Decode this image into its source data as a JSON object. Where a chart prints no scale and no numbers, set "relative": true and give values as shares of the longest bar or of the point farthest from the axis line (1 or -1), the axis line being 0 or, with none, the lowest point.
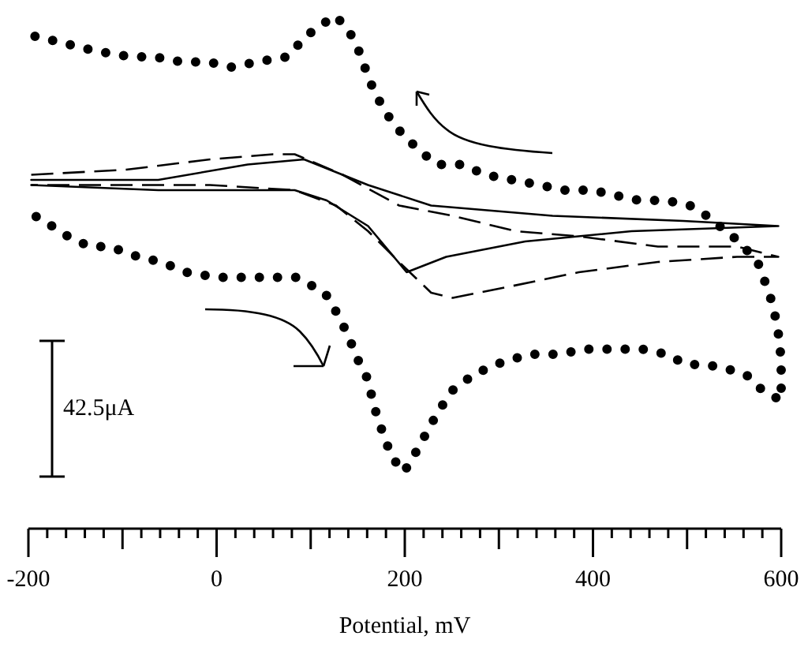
{
  "chart_data": {
    "type": "line",
    "relative": true,
    "xlabel": "Potential, mV",
    "annotations": [
      "42.5μA"
    ],
    "xlim": [
      -200,
      600
    ],
    "tick_labels": "x",
    "xticks": [
      -200,
      {
        "value": -180,
        "label": null
      },
      {
        "value": -160,
        "label": null
      },
      {
        "value": -140,
        "label": null
      },
      {
        "value": -120,
        "label": null
      },
      {
        "value": -100,
        "label": null
      },
      {
        "value": -80,
        "label": null
      },
      {
        "value": -60,
        "label": null
      },
      {
        "value": -40,
        "label": null
      },
      {
        "value": -20,
        "label": null
      },
      0,
      {
        "value": 20,
        "label": null
      },
      {
        "value": 40,
        "label": null
      },
      {
        "value": 60,
        "label": null
      },
      {
        "value": 80,
        "label": null
      },
      {
        "value": 100,
        "label": null
      },
      {
        "value": 120,
        "label": null
      },
      {
        "value": 140,
        "label": null
      },
      {
        "value": 160,
        "label": null
      },
      {
        "value": 180,
        "label": null
      },
      200,
      {
        "value": 220,
        "label": null
      },
      {
        "value": 240,
        "label": null
      },
      {
        "value": 260,
        "label": null
      },
      {
        "value": 280,
        "label": null
      },
      {
        "value": 300,
        "label": null
      },
      {
        "value": 320,
        "label": null
      },
      {
        "value": 340,
        "label": null
      },
      {
        "value": 360,
        "label": null
      },
      {
        "value": 380,
        "label": null
      },
      400,
      {
        "value": 420,
        "label": null
      },
      {
        "value": 440,
        "label": null
      },
      {
        "value": 460,
        "label": null
      },
      {
        "value": 480,
        "label": null
      },
      {
        "value": 500,
        "label": null
      },
      {
        "value": 520,
        "label": null
      },
      {
        "value": 540,
        "label": null
      },
      {
        "value": 560,
        "label": null
      },
      {
        "value": 580,
        "label": null
      },
      600
    ],
    "series": [
      {
        "color": "#000000",
        "line_style": "dotted",
        "x": [
          -193,
          -170,
          -148,
          -125,
          -91,
          -66,
          -37,
          -9,
          16,
          43,
          75,
          95,
          109,
          127,
          144,
          154,
          161,
          171,
          184,
          197,
          214,
          234,
          260,
          286,
          315,
          343,
          370,
          399,
          424,
          449,
          478,
          503,
          521,
          555,
          575,
          587,
          592,
          597,
          600,
          600,
          600,
          580,
          563,
          545,
          521,
          499,
          479,
          452,
          420,
          394,
          362,
          332,
          296,
          273,
          251,
          236,
          224,
          209,
          199,
          186,
          176,
          167,
          161,
          150,
          139,
          125,
          115,
          85,
          60,
          33,
          0,
          -32,
          -59,
          -83,
          -114,
          -135,
          -158,
          -175,
          -193,
          -200
        ],
        "values": [
          0.96,
          0.95,
          0.94,
          0.93,
          0.92,
          0.92,
          0.91,
          0.91,
          0.9,
          0.91,
          0.92,
          0.96,
          0.98,
          1.0,
          0.96,
          0.92,
          0.88,
          0.84,
          0.8,
          0.77,
          0.74,
          0.71,
          0.71,
          0.69,
          0.68,
          0.67,
          0.66,
          0.66,
          0.65,
          0.64,
          0.64,
          0.63,
          0.61,
          0.56,
          0.52,
          0.46,
          0.43,
          0.38,
          0.33,
          0.3,
          0.25,
          0.27,
          0.3,
          0.31,
          0.32,
          0.32,
          0.34,
          0.35,
          0.35,
          0.35,
          0.34,
          0.34,
          0.32,
          0.3,
          0.27,
          0.23,
          0.19,
          0.14,
          0.11,
          0.14,
          0.19,
          0.24,
          0.29,
          0.33,
          0.38,
          0.43,
          0.46,
          0.49,
          0.49,
          0.49,
          0.49,
          0.5,
          0.52,
          0.53,
          0.55,
          0.55,
          0.57,
          0.59,
          0.61,
          0.64
        ]
      },
      {
        "color": "#000000",
        "line_style": "dashed",
        "x": [
          -197,
          -96,
          -7,
          60,
          83,
          134,
          194,
          251,
          318,
          385,
          469,
          553,
          597,
          553,
          469,
          385,
          306,
          251,
          228,
          194,
          161,
          127,
          83,
          -7,
          -118,
          -197
        ],
        "values": [
          0.69,
          0.7,
          0.72,
          0.73,
          0.73,
          0.69,
          0.63,
          0.61,
          0.58,
          0.57,
          0.55,
          0.55,
          0.53,
          0.53,
          0.52,
          0.5,
          0.47,
          0.45,
          0.46,
          0.52,
          0.58,
          0.63,
          0.66,
          0.67,
          0.67,
          0.67
        ]
      },
      {
        "color": "#000000",
        "line_style": "solid",
        "x": [
          -197,
          -62,
          83,
          117,
          161,
          202,
          244,
          328,
          441,
          597,
          496,
          357,
          228,
          161,
          93,
          33,
          -62,
          -197
        ],
        "values": [
          0.67,
          0.66,
          0.66,
          0.64,
          0.59,
          0.5,
          0.53,
          0.56,
          0.58,
          0.59,
          0.6,
          0.61,
          0.63,
          0.67,
          0.72,
          0.71,
          0.68,
          0.68
        ]
      }
    ]
  }
}
